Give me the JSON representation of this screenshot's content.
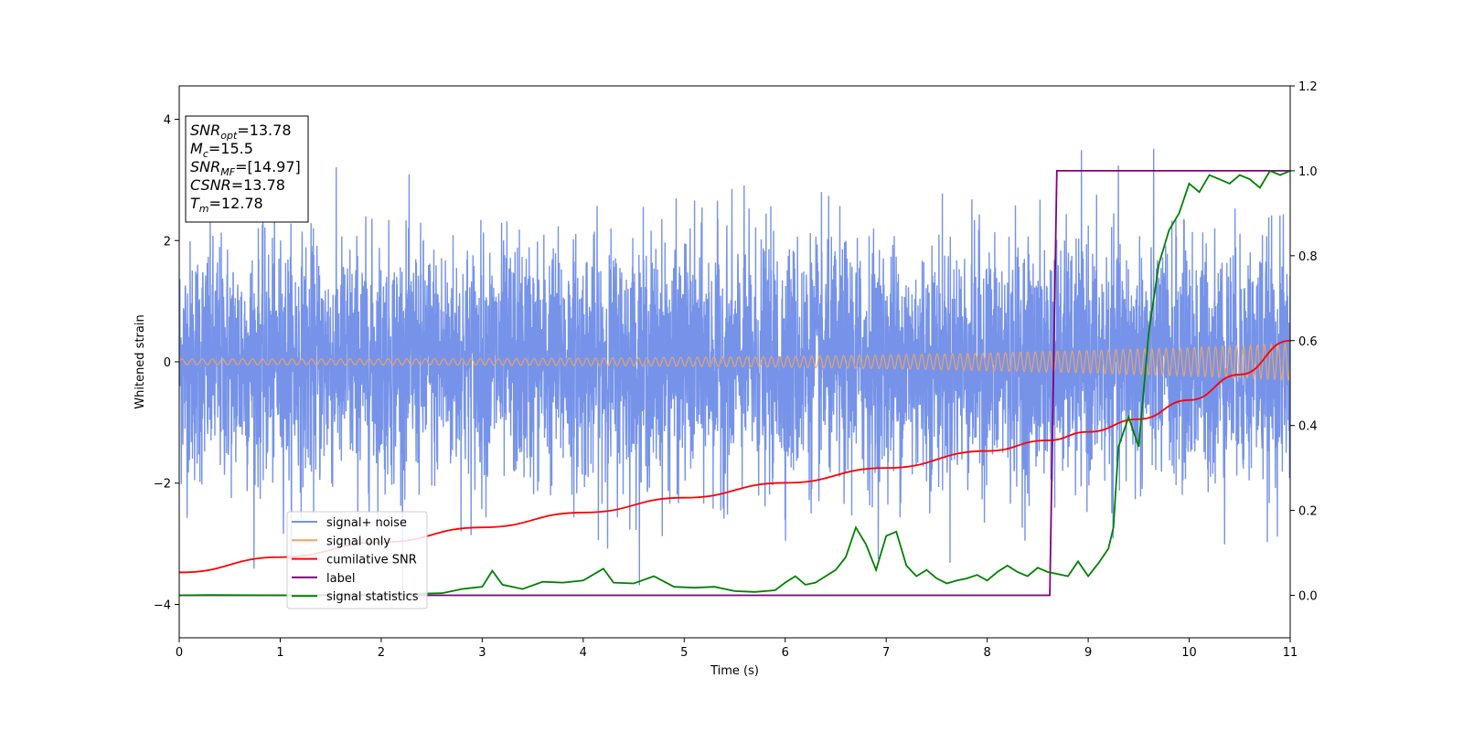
{
  "chart_data": {
    "type": "line",
    "title": "",
    "xlabel": "Time (s)",
    "ylabel": "Whitened strain",
    "xlim": [
      0,
      11
    ],
    "ylim": [
      -4.55,
      4.55
    ],
    "y2lim": [
      -0.1,
      1.2
    ],
    "x_ticks": [
      "0",
      "1",
      "2",
      "3",
      "4",
      "5",
      "6",
      "7",
      "8",
      "9",
      "10",
      "11"
    ],
    "y_ticks": [
      "−4",
      "−2",
      "0",
      "2",
      "4"
    ],
    "y2_ticks": [
      "0.0",
      "0.2",
      "0.4",
      "0.6",
      "0.8",
      "1.0",
      "1.2"
    ],
    "grid": false,
    "legend_position": "lower-left",
    "info_box": {
      "lines": [
        {
          "main": "SNR",
          "sub": "opt",
          "value": "=13.78"
        },
        {
          "main": "M",
          "sub": "c",
          "value": "=15.5"
        },
        {
          "main": "SNR",
          "sub": "MF",
          "value": "=[14.97]"
        },
        {
          "main": "CSNR",
          "sub": "",
          "value": "=13.78"
        },
        {
          "main": "T",
          "sub": "m",
          "value": "=12.78"
        }
      ]
    },
    "series": [
      {
        "name": "signal+ noise",
        "axis": "left",
        "color": "#4169e1",
        "opacity": 0.72,
        "description": "whitened noise, approximately unit variance, sampled densely over 0–11 s",
        "noise_std": 0.98,
        "samples": 5200
      },
      {
        "name": "signal only",
        "axis": "left",
        "color": "#f4a460",
        "description": "chirp with amplitude growing from ~0.05 to ~0.3",
        "amplitude_start": 0.05,
        "amplitude_end": 0.3,
        "cycles": 135
      },
      {
        "name": "cumilative SNR",
        "axis": "right",
        "color": "#ff0000",
        "x": [
          0,
          1,
          2,
          3,
          4,
          5,
          6,
          7,
          8,
          8.6,
          9,
          9.5,
          10,
          10.5,
          11
        ],
        "y": [
          0.054,
          0.09,
          0.125,
          0.16,
          0.195,
          0.23,
          0.265,
          0.3,
          0.34,
          0.365,
          0.385,
          0.415,
          0.46,
          0.52,
          0.6
        ]
      },
      {
        "name": "label",
        "axis": "right",
        "color": "#800080",
        "x": [
          0,
          8.62,
          8.69,
          11
        ],
        "y": [
          0.0,
          0.0,
          1.0,
          1.0
        ]
      },
      {
        "name": "signal statistics",
        "axis": "right",
        "color": "#008000",
        "x": [
          0,
          0.3,
          1.0,
          2.0,
          2.6,
          2.8,
          3.0,
          3.1,
          3.2,
          3.4,
          3.6,
          3.8,
          4.0,
          4.2,
          4.3,
          4.5,
          4.7,
          4.9,
          5.1,
          5.3,
          5.5,
          5.7,
          5.9,
          6.0,
          6.1,
          6.2,
          6.3,
          6.4,
          6.5,
          6.6,
          6.7,
          6.8,
          6.9,
          7.0,
          7.1,
          7.2,
          7.3,
          7.4,
          7.5,
          7.6,
          7.7,
          7.8,
          7.9,
          8.0,
          8.1,
          8.2,
          8.3,
          8.4,
          8.5,
          8.6,
          8.7,
          8.8,
          8.9,
          9.0,
          9.1,
          9.2,
          9.25,
          9.3,
          9.4,
          9.5,
          9.6,
          9.7,
          9.8,
          9.9,
          10.0,
          10.1,
          10.2,
          10.3,
          10.4,
          10.5,
          10.6,
          10.7,
          10.8,
          10.9,
          11.0
        ],
        "y": [
          0.0,
          0.001,
          0.0,
          0.002,
          0.005,
          0.015,
          0.02,
          0.058,
          0.025,
          0.015,
          0.032,
          0.03,
          0.035,
          0.063,
          0.03,
          0.028,
          0.045,
          0.02,
          0.018,
          0.02,
          0.01,
          0.008,
          0.012,
          0.03,
          0.045,
          0.025,
          0.03,
          0.045,
          0.06,
          0.09,
          0.16,
          0.12,
          0.06,
          0.14,
          0.15,
          0.07,
          0.045,
          0.06,
          0.04,
          0.028,
          0.035,
          0.04,
          0.048,
          0.035,
          0.055,
          0.07,
          0.055,
          0.045,
          0.065,
          0.055,
          0.05,
          0.045,
          0.08,
          0.045,
          0.075,
          0.11,
          0.16,
          0.35,
          0.42,
          0.35,
          0.62,
          0.78,
          0.86,
          0.9,
          0.97,
          0.95,
          0.99,
          0.98,
          0.97,
          0.99,
          0.98,
          0.96,
          1.0,
          0.99,
          1.0
        ]
      }
    ]
  }
}
